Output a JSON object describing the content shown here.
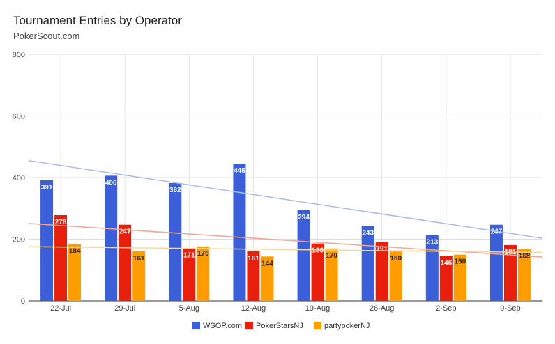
{
  "chart_data": {
    "type": "bar",
    "title": "Tournament Entries by Operator",
    "subtitle": "PokerScout.com",
    "xlabel": "",
    "ylabel": "",
    "categories": [
      "22-Jul",
      "29-Jul",
      "5-Aug",
      "12-Aug",
      "19-Aug",
      "26-Aug",
      "2-Sep",
      "9-Sep"
    ],
    "ylim": [
      0,
      800
    ],
    "yticks": [
      0,
      200,
      400,
      600,
      800
    ],
    "grid": true,
    "legend_position": "bottom",
    "series": [
      {
        "name": "WSOP.com",
        "color": "#3a5fd9",
        "values": [
          391,
          406,
          382,
          445,
          294,
          243,
          213,
          247
        ],
        "label_color": "#ffffff"
      },
      {
        "name": "PokerStarsNJ",
        "color": "#e81f0d",
        "values": [
          278,
          247,
          171,
          161,
          186,
          191,
          146,
          181
        ],
        "label_color": "#ffffff"
      },
      {
        "name": "partypokerNJ",
        "color": "#ff9c00",
        "values": [
          184,
          161,
          176,
          144,
          170,
          160,
          150,
          168
        ],
        "label_color": "#222222"
      }
    ],
    "trendlines": [
      {
        "series": "WSOP.com",
        "color": "#a8bcec",
        "start": 455,
        "end": 203
      },
      {
        "series": "PokerStarsNJ",
        "color": "#f3a494",
        "start": 251,
        "end": 142
      },
      {
        "series": "partypokerNJ",
        "color": "#fdd68f",
        "start": 176,
        "end": 157
      }
    ]
  }
}
